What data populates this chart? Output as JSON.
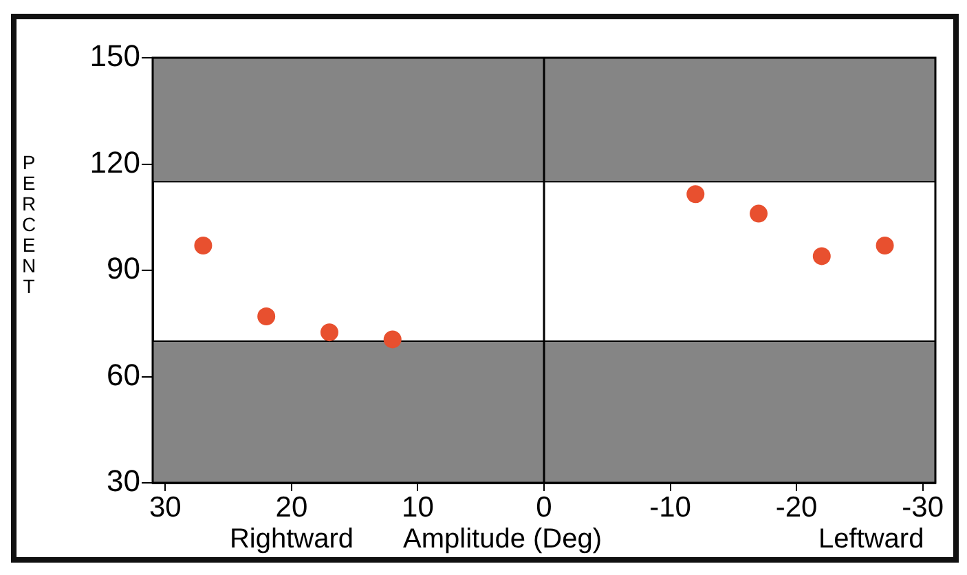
{
  "chart_data": {
    "type": "scatter",
    "xlabel": "Amplitude (Deg)",
    "ylabel": "PERCENT",
    "annotations": [
      "Rightward",
      "Leftward"
    ],
    "series": [
      {
        "color": "#e8502f",
        "x": [
          27,
          22,
          17,
          12,
          -12,
          -17,
          -22,
          -27
        ],
        "values": [
          97,
          77,
          72.5,
          70.5,
          111.5,
          106,
          94,
          97
        ]
      }
    ],
    "xlim": [
      31,
      -31
    ],
    "xticks": [
      30,
      20,
      10,
      0,
      -10,
      -20,
      -30
    ],
    "ylim": [
      30,
      150
    ],
    "yticks": [
      30,
      60,
      90,
      120,
      150
    ],
    "bands": [
      {
        "axis": "y",
        "from": 115,
        "to": 150,
        "color": "#858585"
      },
      {
        "axis": "y",
        "from": 30,
        "to": 70,
        "color": "#858585"
      }
    ],
    "ref_lines": [
      {
        "axis": "x",
        "value": 0,
        "color": "#000000"
      }
    ],
    "marker": "circle",
    "grid": false,
    "legend": false
  }
}
